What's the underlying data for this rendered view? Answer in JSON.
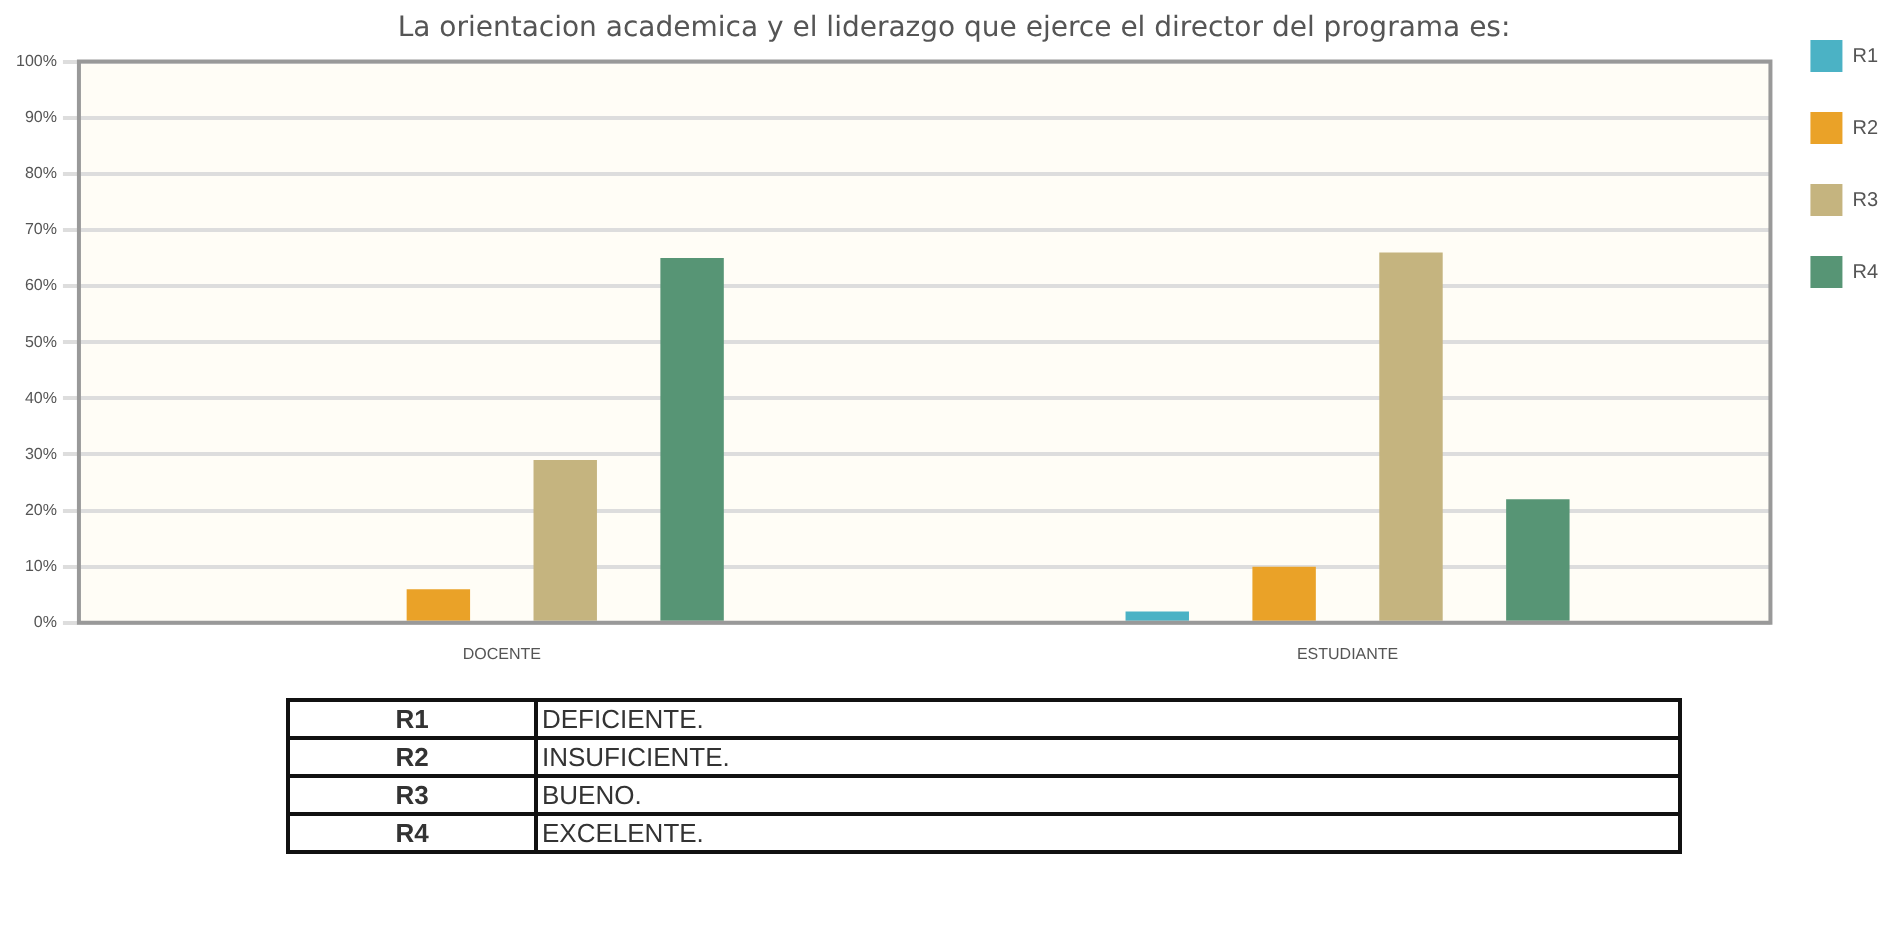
{
  "chart_data": {
    "type": "bar",
    "title": "La orientacion academica y el liderazgo que ejerce el director del programa es:",
    "categories": [
      "DOCENTE",
      "ESTUDIANTE"
    ],
    "series": [
      {
        "name": "R1",
        "color": "#4bb2c5",
        "values": [
          0,
          2
        ]
      },
      {
        "name": "R2",
        "color": "#eaa228",
        "values": [
          6,
          10
        ]
      },
      {
        "name": "R3",
        "color": "#c5b47f",
        "values": [
          29,
          66
        ]
      },
      {
        "name": "R4",
        "color": "#579575",
        "values": [
          65,
          22
        ]
      }
    ],
    "ylim": [
      0,
      100
    ],
    "yticks": [
      {
        "value": 0,
        "label": "0%"
      },
      {
        "value": 10,
        "label": "10%"
      },
      {
        "value": 20,
        "label": "20%"
      },
      {
        "value": 30,
        "label": "30%"
      },
      {
        "value": 40,
        "label": "40%"
      },
      {
        "value": 50,
        "label": "50%"
      },
      {
        "value": 60,
        "label": "60%"
      },
      {
        "value": 70,
        "label": "70%"
      },
      {
        "value": 80,
        "label": "80%"
      },
      {
        "value": 90,
        "label": "90%"
      },
      {
        "value": 100,
        "label": "100%"
      }
    ],
    "grid": "y",
    "legend": "right",
    "annotations": [
      "DEFICIENTE.",
      "INSUFICIENTE.",
      "BUENO.",
      "EXCELENTE."
    ]
  }
}
